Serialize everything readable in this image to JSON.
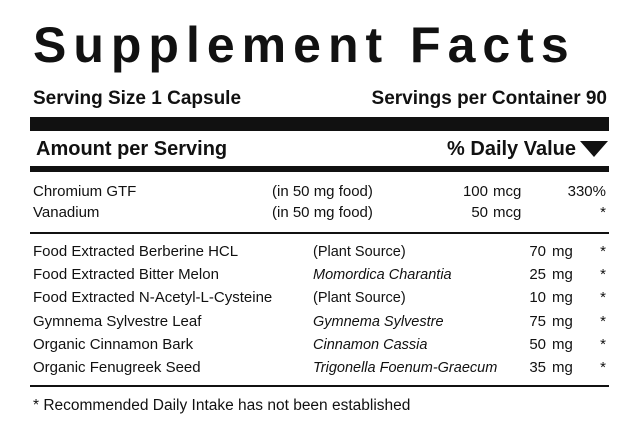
{
  "header": {
    "title": "Supplement Facts",
    "serving_size": "Serving Size 1 Capsule",
    "servings_per_container": "Servings per Container 90"
  },
  "columns": {
    "amount": "Amount per Serving",
    "daily_value": "% Daily Value"
  },
  "minerals": [
    {
      "name": "Chromium GTF",
      "basis": "(in 50 mg food)",
      "amount": "100",
      "unit": "mcg",
      "dv": "330%"
    },
    {
      "name": "Vanadium",
      "basis": "(in 50 mg food)",
      "amount": "50",
      "unit": "mcg",
      "dv": "*"
    }
  ],
  "ingredients": [
    {
      "name": "Food Extracted Berberine HCL",
      "source": "(Plant Source)",
      "amount": "70",
      "unit": "mg",
      "dv": "*"
    },
    {
      "name": "Food Extracted Bitter Melon",
      "source": "Momordica Charantia",
      "amount": "25",
      "unit": "mg",
      "dv": "*"
    },
    {
      "name": "Food Extracted N-Acetyl-L-Cysteine",
      "source": "(Plant Source)",
      "amount": "10",
      "unit": "mg",
      "dv": "*"
    },
    {
      "name": "Gymnema Sylvestre Leaf",
      "source": "Gymnema Sylvestre",
      "amount": "75",
      "unit": "mg",
      "dv": "*"
    },
    {
      "name": "Organic Cinnamon Bark",
      "source": "Cinnamon Cassia",
      "amount": "50",
      "unit": "mg",
      "dv": "*"
    },
    {
      "name": "Organic Fenugreek Seed",
      "source": "Trigonella Foenum-Graecum",
      "amount": "35",
      "unit": "mg",
      "dv": "*"
    }
  ],
  "footnote": "* Recommended Daily Intake has not been established"
}
